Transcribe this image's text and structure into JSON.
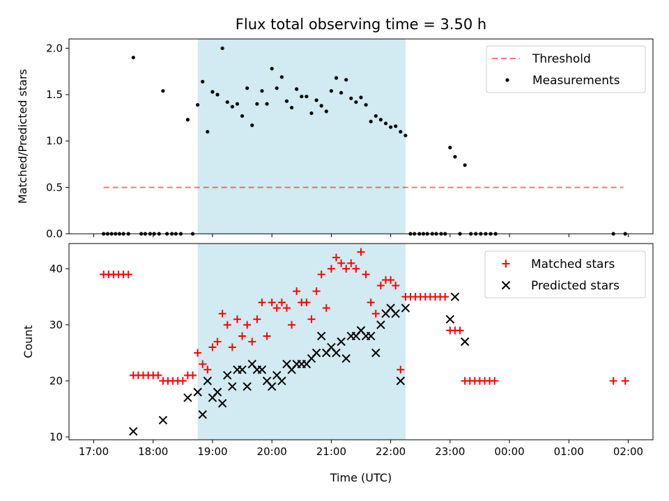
{
  "figure": {
    "title": "Flux total observing time = 3.50 h",
    "xlabel": "Time (UTC)"
  },
  "colors": {
    "span": "#add8e6",
    "threshold": "#ff0000",
    "measurements": "#000000",
    "matched": "#ff0000",
    "predicted": "#000000"
  },
  "chart_data": [
    {
      "type": "scatter",
      "ylabel": "Matched/Predicted stars",
      "xlim": [
        "17:00",
        "02:25"
      ],
      "ylim": [
        0,
        2.1
      ],
      "xticks": [
        "17:00",
        "18:00",
        "19:00",
        "20:00",
        "21:00",
        "22:00",
        "23:00",
        "00:00",
        "01:00",
        "02:00"
      ],
      "yticks": [
        "0.0",
        "0.5",
        "1.0",
        "1.5",
        "2.0"
      ],
      "legend_position": "upper right",
      "span": [
        "18:45",
        "22:15"
      ],
      "threshold": {
        "name": "Threshold",
        "y": 0.5,
        "x_start": "17:10",
        "x_end": "01:55"
      },
      "series": [
        {
          "name": "Measurements",
          "points": [
            [
              "17:10",
              0
            ],
            [
              "17:14",
              0
            ],
            [
              "17:18",
              0
            ],
            [
              "17:22",
              0
            ],
            [
              "17:26",
              0
            ],
            [
              "17:30",
              0
            ],
            [
              "17:35",
              0
            ],
            [
              "17:40",
              1.9
            ],
            [
              "17:48",
              0
            ],
            [
              "17:52",
              0
            ],
            [
              "17:57",
              0
            ],
            [
              "18:01",
              0
            ],
            [
              "18:06",
              0
            ],
            [
              "18:10",
              1.54
            ],
            [
              "18:14",
              0
            ],
            [
              "18:19",
              0
            ],
            [
              "18:23",
              0
            ],
            [
              "18:28",
              0
            ],
            [
              "18:35",
              1.23
            ],
            [
              "18:40",
              0
            ],
            [
              "18:45",
              1.39
            ],
            [
              "18:50",
              1.64
            ],
            [
              "18:55",
              1.1
            ],
            [
              "19:00",
              1.53
            ],
            [
              "19:05",
              1.5
            ],
            [
              "19:10",
              2.0
            ],
            [
              "19:15",
              1.42
            ],
            [
              "19:20",
              1.37
            ],
            [
              "19:25",
              1.4
            ],
            [
              "19:30",
              1.27
            ],
            [
              "19:35",
              1.57
            ],
            [
              "19:40",
              1.17
            ],
            [
              "19:45",
              1.4
            ],
            [
              "19:50",
              1.54
            ],
            [
              "19:55",
              1.4
            ],
            [
              "20:00",
              1.78
            ],
            [
              "20:05",
              1.57
            ],
            [
              "20:10",
              1.69
            ],
            [
              "20:15",
              1.43
            ],
            [
              "20:20",
              1.36
            ],
            [
              "20:25",
              1.56
            ],
            [
              "20:30",
              1.48
            ],
            [
              "20:35",
              1.48
            ],
            [
              "20:40",
              1.3
            ],
            [
              "20:45",
              1.44
            ],
            [
              "20:50",
              1.38
            ],
            [
              "20:55",
              1.32
            ],
            [
              "21:00",
              1.54
            ],
            [
              "21:05",
              1.68
            ],
            [
              "21:10",
              1.52
            ],
            [
              "21:15",
              1.66
            ],
            [
              "21:20",
              1.46
            ],
            [
              "21:25",
              1.42
            ],
            [
              "21:30",
              1.47
            ],
            [
              "21:35",
              1.39
            ],
            [
              "21:40",
              1.21
            ],
            [
              "21:45",
              1.27
            ],
            [
              "21:50",
              1.23
            ],
            [
              "21:55",
              1.19
            ],
            [
              "22:00",
              1.15
            ],
            [
              "22:05",
              1.16
            ],
            [
              "22:10",
              1.1
            ],
            [
              "22:15",
              1.06
            ],
            [
              "22:20",
              0
            ],
            [
              "22:24",
              0
            ],
            [
              "22:29",
              0
            ],
            [
              "22:33",
              0
            ],
            [
              "22:37",
              0
            ],
            [
              "22:42",
              0
            ],
            [
              "22:46",
              0
            ],
            [
              "22:51",
              0
            ],
            [
              "22:55",
              0
            ],
            [
              "23:00",
              0.93
            ],
            [
              "23:05",
              0.83
            ],
            [
              "23:10",
              0
            ],
            [
              "23:15",
              0.74
            ],
            [
              "23:21",
              0
            ],
            [
              "23:26",
              0
            ],
            [
              "23:31",
              0
            ],
            [
              "23:36",
              0
            ],
            [
              "23:41",
              0
            ],
            [
              "23:46",
              0
            ],
            [
              "01:45",
              0
            ],
            [
              "01:57",
              0
            ]
          ]
        }
      ]
    },
    {
      "type": "scatter",
      "ylabel": "Count",
      "xlim": [
        "17:00",
        "02:25"
      ],
      "ylim": [
        9.5,
        44.5
      ],
      "xticks": [
        "17:00",
        "18:00",
        "19:00",
        "20:00",
        "21:00",
        "22:00",
        "23:00",
        "00:00",
        "01:00",
        "02:00"
      ],
      "xticklabels": [
        "17:00",
        "18:00",
        "19:00",
        "20:00",
        "21:00",
        "22:00",
        "23:00",
        "00:00",
        "01:00",
        "02:00"
      ],
      "yticks": [
        "10",
        "20",
        "30",
        "40"
      ],
      "legend_position": "upper right",
      "span": [
        "18:45",
        "22:15"
      ],
      "series": [
        {
          "name": "Matched stars",
          "marker": "plus",
          "points": [
            [
              "17:10",
              39
            ],
            [
              "17:15",
              39
            ],
            [
              "17:20",
              39
            ],
            [
              "17:25",
              39
            ],
            [
              "17:30",
              39
            ],
            [
              "17:35",
              39
            ],
            [
              "17:40",
              21
            ],
            [
              "17:45",
              21
            ],
            [
              "17:50",
              21
            ],
            [
              "17:55",
              21
            ],
            [
              "18:00",
              21
            ],
            [
              "18:05",
              21
            ],
            [
              "18:10",
              20
            ],
            [
              "18:15",
              20
            ],
            [
              "18:20",
              20
            ],
            [
              "18:25",
              20
            ],
            [
              "18:30",
              20
            ],
            [
              "18:35",
              21
            ],
            [
              "18:40",
              21
            ],
            [
              "18:45",
              25
            ],
            [
              "18:50",
              23
            ],
            [
              "18:55",
              22
            ],
            [
              "19:00",
              26
            ],
            [
              "19:05",
              27
            ],
            [
              "19:10",
              32
            ],
            [
              "19:15",
              30
            ],
            [
              "19:20",
              26
            ],
            [
              "19:25",
              31
            ],
            [
              "19:30",
              28
            ],
            [
              "19:35",
              30
            ],
            [
              "19:40",
              27
            ],
            [
              "19:45",
              31
            ],
            [
              "19:50",
              34
            ],
            [
              "19:55",
              28
            ],
            [
              "20:00",
              34
            ],
            [
              "20:05",
              33
            ],
            [
              "20:10",
              34
            ],
            [
              "20:15",
              33
            ],
            [
              "20:20",
              30
            ],
            [
              "20:25",
              36
            ],
            [
              "20:30",
              34
            ],
            [
              "20:35",
              34
            ],
            [
              "20:40",
              31
            ],
            [
              "20:45",
              36
            ],
            [
              "20:50",
              39
            ],
            [
              "20:55",
              33
            ],
            [
              "21:00",
              40
            ],
            [
              "21:05",
              42
            ],
            [
              "21:10",
              41
            ],
            [
              "21:15",
              40
            ],
            [
              "21:20",
              41
            ],
            [
              "21:25",
              40
            ],
            [
              "21:30",
              43
            ],
            [
              "21:35",
              39
            ],
            [
              "21:40",
              34
            ],
            [
              "21:45",
              32
            ],
            [
              "21:50",
              37
            ],
            [
              "21:55",
              38
            ],
            [
              "22:00",
              38
            ],
            [
              "22:05",
              37
            ],
            [
              "22:10",
              22
            ],
            [
              "22:15",
              35
            ],
            [
              "22:20",
              35
            ],
            [
              "22:25",
              35
            ],
            [
              "22:30",
              35
            ],
            [
              "22:35",
              35
            ],
            [
              "22:40",
              35
            ],
            [
              "22:45",
              35
            ],
            [
              "22:50",
              35
            ],
            [
              "22:55",
              35
            ],
            [
              "23:00",
              29
            ],
            [
              "23:05",
              29
            ],
            [
              "23:10",
              29
            ],
            [
              "23:15",
              20
            ],
            [
              "23:20",
              20
            ],
            [
              "23:25",
              20
            ],
            [
              "23:30",
              20
            ],
            [
              "23:35",
              20
            ],
            [
              "23:40",
              20
            ],
            [
              "23:45",
              20
            ],
            [
              "01:45",
              20
            ],
            [
              "01:57",
              20
            ]
          ]
        },
        {
          "name": "Predicted stars",
          "marker": "x",
          "points": [
            [
              "17:40",
              11
            ],
            [
              "18:10",
              13
            ],
            [
              "18:35",
              17
            ],
            [
              "18:45",
              18
            ],
            [
              "18:50",
              14
            ],
            [
              "18:55",
              20
            ],
            [
              "19:00",
              17
            ],
            [
              "19:05",
              18
            ],
            [
              "19:10",
              16
            ],
            [
              "19:15",
              21
            ],
            [
              "19:20",
              19
            ],
            [
              "19:25",
              22
            ],
            [
              "19:30",
              22
            ],
            [
              "19:35",
              19
            ],
            [
              "19:40",
              23
            ],
            [
              "19:45",
              22
            ],
            [
              "19:50",
              22
            ],
            [
              "19:55",
              20
            ],
            [
              "20:00",
              19
            ],
            [
              "20:05",
              21
            ],
            [
              "20:10",
              20
            ],
            [
              "20:15",
              23
            ],
            [
              "20:20",
              22
            ],
            [
              "20:25",
              23
            ],
            [
              "20:30",
              23
            ],
            [
              "20:35",
              23
            ],
            [
              "20:40",
              24
            ],
            [
              "20:45",
              25
            ],
            [
              "20:50",
              28
            ],
            [
              "20:55",
              25
            ],
            [
              "21:00",
              26
            ],
            [
              "21:05",
              25
            ],
            [
              "21:10",
              27
            ],
            [
              "21:15",
              24
            ],
            [
              "21:20",
              28
            ],
            [
              "21:25",
              28
            ],
            [
              "21:30",
              29
            ],
            [
              "21:35",
              28
            ],
            [
              "21:40",
              28
            ],
            [
              "21:45",
              25
            ],
            [
              "21:50",
              30
            ],
            [
              "21:55",
              32
            ],
            [
              "22:00",
              33
            ],
            [
              "22:05",
              32
            ],
            [
              "22:10",
              20
            ],
            [
              "22:15",
              33
            ],
            [
              "23:00",
              31
            ],
            [
              "23:05",
              35
            ],
            [
              "23:15",
              27
            ]
          ]
        }
      ]
    }
  ]
}
